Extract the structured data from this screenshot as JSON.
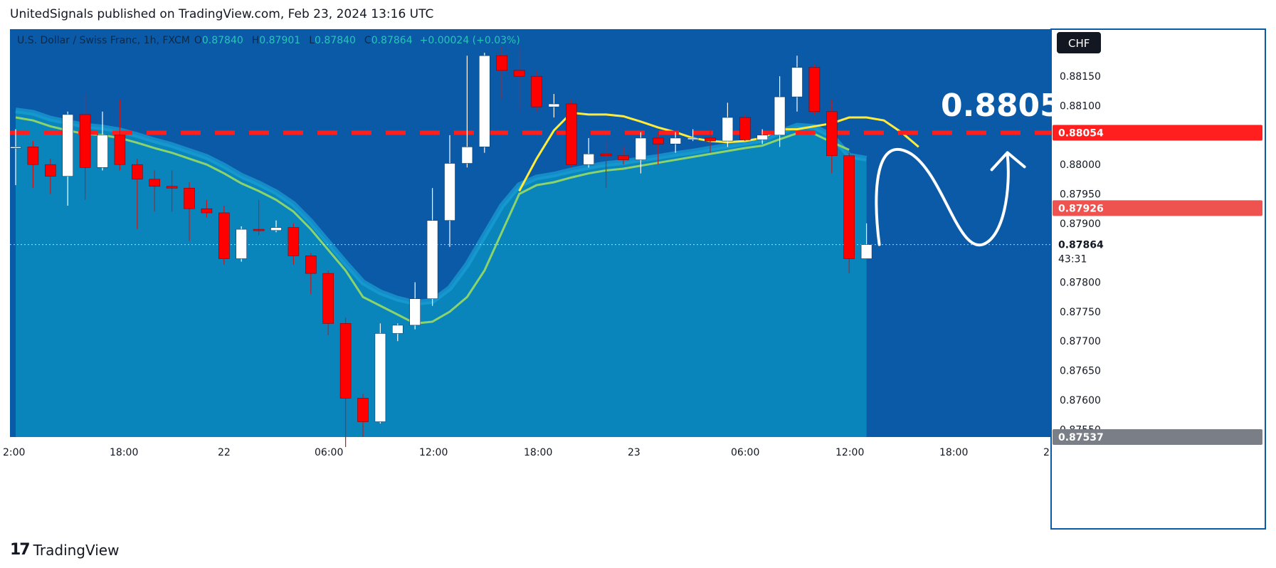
{
  "header": {
    "publisher_line": "UnitedSignals published on TradingView.com, Feb 23, 2024 13:16 UTC"
  },
  "legend": {
    "symbol": "U.S. Dollar / Swiss Franc, 1h, FXCM",
    "o_label": "O",
    "o": "0.87840",
    "h_label": "H",
    "h": "0.87901",
    "l_label": "L",
    "l": "0.87840",
    "c_label": "C",
    "c": "0.87864",
    "change": "+0.00024 (+0.03%)"
  },
  "currency_badge": "CHF",
  "annotation_text": "0.8805",
  "footer": {
    "brand": "TradingView",
    "logo_glyph": "17"
  },
  "colors": {
    "background": "#0a5aa8",
    "up_candle": "#ffffff",
    "down_candle": "#ff0000",
    "level_line": "#ff1f1f",
    "ma_yellow": "#ffeb3b",
    "ma_green": "#8bd36b",
    "area_fill": "#0b88bd",
    "arrow": "#ffffff"
  },
  "chart_data": {
    "type": "candlestick",
    "symbol": "U.S. Dollar / Swiss Franc, 1h, FXCM",
    "y_ticks": [
      "0.88150",
      "0.88100",
      "0.88000",
      "0.87950",
      "0.87900",
      "0.87800",
      "0.87750",
      "0.87700",
      "0.87650",
      "0.87600",
      "0.87550"
    ],
    "x_ticks": [
      "2:00",
      "18:00",
      "22",
      "06:00",
      "12:00",
      "18:00",
      "23",
      "06:00",
      "12:00",
      "18:00",
      "2"
    ],
    "ylim": [
      0.87537,
      0.8823
    ],
    "price_labels": {
      "level": "0.88054",
      "red_tag": "0.87926",
      "current": "0.87864",
      "countdown": "43:31",
      "low": "0.87537"
    },
    "horizontal_level": 0.88054,
    "current_price": 0.87864,
    "candles": [
      {
        "o": 0.8803,
        "h": 0.8806,
        "l": 0.87965,
        "c": 0.8803
      },
      {
        "o": 0.8803,
        "h": 0.8804,
        "l": 0.8796,
        "c": 0.88
      },
      {
        "o": 0.88,
        "h": 0.8801,
        "l": 0.8795,
        "c": 0.8798
      },
      {
        "o": 0.8798,
        "h": 0.8809,
        "l": 0.8793,
        "c": 0.88085
      },
      {
        "o": 0.88085,
        "h": 0.8812,
        "l": 0.8794,
        "c": 0.87995
      },
      {
        "o": 0.87995,
        "h": 0.8809,
        "l": 0.8799,
        "c": 0.8805
      },
      {
        "o": 0.8805,
        "h": 0.8811,
        "l": 0.8799,
        "c": 0.88
      },
      {
        "o": 0.88,
        "h": 0.8801,
        "l": 0.8789,
        "c": 0.87975
      },
      {
        "o": 0.87975,
        "h": 0.8799,
        "l": 0.8792,
        "c": 0.87963
      },
      {
        "o": 0.87963,
        "h": 0.8799,
        "l": 0.8792,
        "c": 0.8796
      },
      {
        "o": 0.8796,
        "h": 0.8797,
        "l": 0.8787,
        "c": 0.87925
      },
      {
        "o": 0.87925,
        "h": 0.8794,
        "l": 0.8791,
        "c": 0.87918
      },
      {
        "o": 0.87918,
        "h": 0.8793,
        "l": 0.8783,
        "c": 0.8784
      },
      {
        "o": 0.8784,
        "h": 0.87895,
        "l": 0.87835,
        "c": 0.8789
      },
      {
        "o": 0.8789,
        "h": 0.8794,
        "l": 0.8788,
        "c": 0.87888
      },
      {
        "o": 0.87888,
        "h": 0.87905,
        "l": 0.87885,
        "c": 0.87893
      },
      {
        "o": 0.87893,
        "h": 0.879,
        "l": 0.8783,
        "c": 0.87845
      },
      {
        "o": 0.87845,
        "h": 0.8785,
        "l": 0.8778,
        "c": 0.87815
      },
      {
        "o": 0.87815,
        "h": 0.8782,
        "l": 0.8771,
        "c": 0.8773
      },
      {
        "o": 0.8773,
        "h": 0.8774,
        "l": 0.8752,
        "c": 0.87603
      },
      {
        "o": 0.87603,
        "h": 0.8761,
        "l": 0.87537,
        "c": 0.87563
      },
      {
        "o": 0.87563,
        "h": 0.8773,
        "l": 0.8756,
        "c": 0.87713
      },
      {
        "o": 0.87713,
        "h": 0.8773,
        "l": 0.877,
        "c": 0.87727
      },
      {
        "o": 0.87727,
        "h": 0.878,
        "l": 0.8772,
        "c": 0.87772
      },
      {
        "o": 0.87772,
        "h": 0.8796,
        "l": 0.8776,
        "c": 0.87905
      },
      {
        "o": 0.87905,
        "h": 0.8805,
        "l": 0.8786,
        "c": 0.88002
      },
      {
        "o": 0.88002,
        "h": 0.88185,
        "l": 0.87995,
        "c": 0.8803
      },
      {
        "o": 0.8803,
        "h": 0.8819,
        "l": 0.8802,
        "c": 0.88185
      },
      {
        "o": 0.88185,
        "h": 0.882,
        "l": 0.8811,
        "c": 0.8816
      },
      {
        "o": 0.8816,
        "h": 0.882,
        "l": 0.8809,
        "c": 0.8815
      },
      {
        "o": 0.8815,
        "h": 0.8816,
        "l": 0.8809,
        "c": 0.88098
      },
      {
        "o": 0.88098,
        "h": 0.8812,
        "l": 0.8808,
        "c": 0.88103
      },
      {
        "o": 0.88103,
        "h": 0.8811,
        "l": 0.87995,
        "c": 0.88
      },
      {
        "o": 0.88,
        "h": 0.88045,
        "l": 0.87995,
        "c": 0.88018
      },
      {
        "o": 0.88018,
        "h": 0.8804,
        "l": 0.8796,
        "c": 0.88015
      },
      {
        "o": 0.88015,
        "h": 0.8803,
        "l": 0.88,
        "c": 0.88008
      },
      {
        "o": 0.88008,
        "h": 0.88055,
        "l": 0.87985,
        "c": 0.88045
      },
      {
        "o": 0.88045,
        "h": 0.88055,
        "l": 0.88,
        "c": 0.88035
      },
      {
        "o": 0.88035,
        "h": 0.88055,
        "l": 0.8802,
        "c": 0.88045
      },
      {
        "o": 0.88045,
        "h": 0.8806,
        "l": 0.8804,
        "c": 0.88045
      },
      {
        "o": 0.88045,
        "h": 0.8806,
        "l": 0.8802,
        "c": 0.8804
      },
      {
        "o": 0.8804,
        "h": 0.88105,
        "l": 0.8803,
        "c": 0.8808
      },
      {
        "o": 0.8808,
        "h": 0.88085,
        "l": 0.8804,
        "c": 0.88042
      },
      {
        "o": 0.88042,
        "h": 0.8806,
        "l": 0.88035,
        "c": 0.8805
      },
      {
        "o": 0.8805,
        "h": 0.8815,
        "l": 0.8803,
        "c": 0.88115
      },
      {
        "o": 0.88115,
        "h": 0.88185,
        "l": 0.8809,
        "c": 0.88165
      },
      {
        "o": 0.88165,
        "h": 0.8817,
        "l": 0.88085,
        "c": 0.8809
      },
      {
        "o": 0.8809,
        "h": 0.8811,
        "l": 0.87985,
        "c": 0.88015
      },
      {
        "o": 0.88015,
        "h": 0.8802,
        "l": 0.87815,
        "c": 0.8784
      },
      {
        "o": 0.8784,
        "h": 0.879,
        "l": 0.8784,
        "c": 0.87864
      }
    ],
    "ma_green": [
      0.8808,
      0.88075,
      0.88065,
      0.88058,
      0.88052,
      0.8805,
      0.88045,
      0.88037,
      0.88028,
      0.8802,
      0.8801,
      0.88,
      0.87985,
      0.87968,
      0.87955,
      0.8794,
      0.8792,
      0.8789,
      0.87855,
      0.8782,
      0.87775,
      0.8776,
      0.87745,
      0.8773,
      0.87733,
      0.8775,
      0.87775,
      0.8782,
      0.87885,
      0.8795,
      0.87965,
      0.8797,
      0.87978,
      0.87985,
      0.8799,
      0.87993,
      0.87998,
      0.88003,
      0.88008,
      0.88013,
      0.88018,
      0.88023,
      0.88028,
      0.88032,
      0.88043,
      0.88053,
      0.88052,
      0.88038,
      0.88025
    ],
    "ma_yellow_start": 29,
    "ma_yellow": [
      0.87955,
      0.8801,
      0.88058,
      0.88088,
      0.88085,
      0.88085,
      0.88082,
      0.88073,
      0.88063,
      0.88055,
      0.88045,
      0.8804,
      0.88038,
      0.8804,
      0.88045,
      0.8806,
      0.8806,
      0.88065,
      0.8807,
      0.8808,
      0.8808,
      0.88075,
      0.88055,
      0.8803
    ],
    "band_upper": [
      0.88092,
      0.88088,
      0.88078,
      0.88072,
      0.88066,
      0.88063,
      0.88058,
      0.8805,
      0.88041,
      0.88033,
      0.88023,
      0.88013,
      0.87998,
      0.87981,
      0.87968,
      0.87953,
      0.87933,
      0.87903,
      0.87868,
      0.87833,
      0.878,
      0.87783,
      0.87772,
      0.87765,
      0.87768,
      0.8779,
      0.8783,
      0.8788,
      0.8793,
      0.87965,
      0.87978,
      0.87983,
      0.8799,
      0.87996,
      0.88001,
      0.88004,
      0.88009,
      0.88013,
      0.88018,
      0.88022,
      0.88027,
      0.88032,
      0.88037,
      0.88042,
      0.88055,
      0.88066,
      0.88064,
      0.88049,
      0.88015,
      0.8801
    ]
  }
}
